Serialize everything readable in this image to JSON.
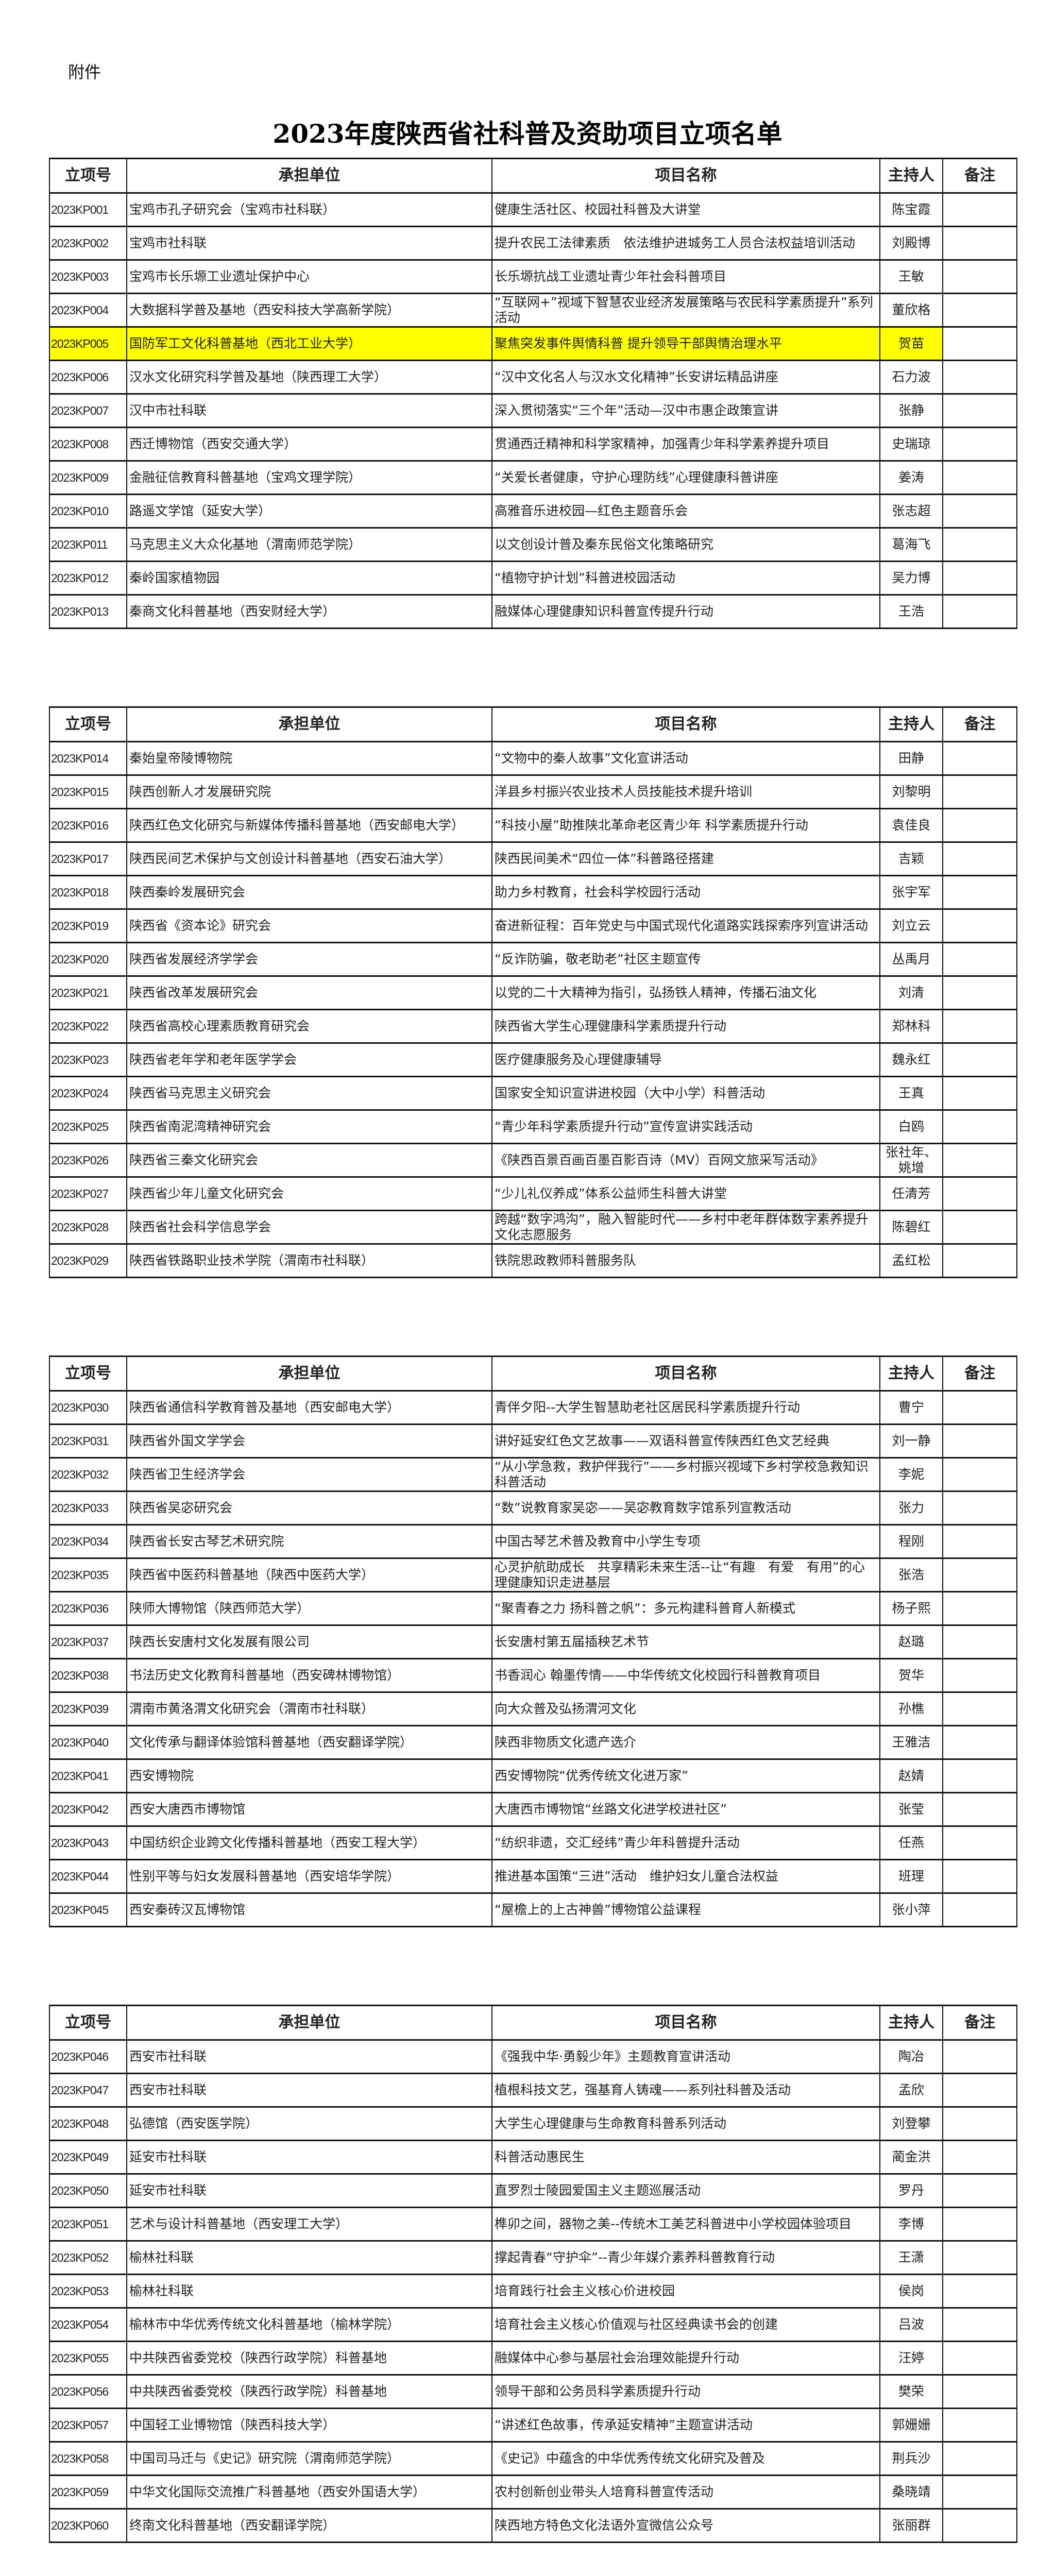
{
  "attachment_label": "附件",
  "title": "2023年度陕西省社科普及资助项目立项名单",
  "highlight_color": "#ffff00",
  "headers": {
    "id": "立项号",
    "unit": "承担单位",
    "project": "项目名称",
    "host": "主持人",
    "note": "备注"
  },
  "tables": [
    {
      "rows": [
        {
          "id": "2023KP001",
          "unit": "宝鸡市孔子研究会（宝鸡市社科联）",
          "project": "健康生活社区、校园社科普及大讲堂",
          "host": "陈宝霞",
          "note": ""
        },
        {
          "id": "2023KP002",
          "unit": "宝鸡市社科联",
          "project": "提升农民工法律素质　依法维护进城务工人员合法权益培训活动",
          "host": "刘殿博",
          "note": ""
        },
        {
          "id": "2023KP003",
          "unit": "宝鸡市长乐塬工业遗址保护中心",
          "project": "长乐塬抗战工业遗址青少年社会科普项目",
          "host": "王敏",
          "note": ""
        },
        {
          "id": "2023KP004",
          "unit": "大数据科学普及基地（西安科技大学高新学院）",
          "project": "“互联网+”视域下智慧农业经济发展策略与农民科学素质提升”系列活动",
          "host": "董欣格",
          "note": ""
        },
        {
          "id": "2023KP005",
          "unit": "国防军工文化科普基地（西北工业大学）",
          "project": "聚焦突发事件舆情科普 提升领导干部舆情治理水平",
          "host": "贺苗",
          "note": "",
          "highlighted": true
        },
        {
          "id": "2023KP006",
          "unit": "汉水文化研究科学普及基地（陕西理工大学）",
          "project": "“汉中文化名人与汉水文化精神”长安讲坛精品讲座",
          "host": "石力波",
          "note": ""
        },
        {
          "id": "2023KP007",
          "unit": "汉中市社科联",
          "project": "深入贯彻落实“三个年”活动—汉中市惠企政策宣讲",
          "host": "张静",
          "note": ""
        },
        {
          "id": "2023KP008",
          "unit": "西迁博物馆（西安交通大学）",
          "project": "贯通西迁精神和科学家精神，加强青少年科学素养提升项目",
          "host": "史瑞琼",
          "note": ""
        },
        {
          "id": "2023KP009",
          "unit": "金融征信教育科普基地（宝鸡文理学院）",
          "project": "“关爱长者健康，守护心理防线”心理健康科普讲座",
          "host": "姜涛",
          "note": ""
        },
        {
          "id": "2023KP010",
          "unit": "路遥文学馆（延安大学）",
          "project": "高雅音乐进校园—红色主题音乐会",
          "host": "张志超",
          "note": ""
        },
        {
          "id": "2023KP011",
          "unit": "马克思主义大众化基地（渭南师范学院）",
          "project": "以文创设计普及秦东民俗文化策略研究",
          "host": "葛海飞",
          "note": ""
        },
        {
          "id": "2023KP012",
          "unit": "秦岭国家植物园",
          "project": "“植物守护计划”科普进校园活动",
          "host": "吴力博",
          "note": ""
        },
        {
          "id": "2023KP013",
          "unit": "秦商文化科普基地（西安财经大学）",
          "project": "融媒体心理健康知识科普宣传提升行动",
          "host": "王浩",
          "note": ""
        }
      ]
    },
    {
      "rows": [
        {
          "id": "2023KP014",
          "unit": "秦始皇帝陵博物院",
          "project": "“文物中的秦人故事”文化宣讲活动",
          "host": "田静",
          "note": ""
        },
        {
          "id": "2023KP015",
          "unit": "陕西创新人才发展研究院",
          "project": "洋县乡村振兴农业技术人员技能技术提升培训",
          "host": "刘黎明",
          "note": ""
        },
        {
          "id": "2023KP016",
          "unit": "陕西红色文化研究与新媒体传播科普基地（西安邮电大学）",
          "project": "“科技小屋”助推陕北革命老区青少年\n科学素质提升行动",
          "host": "袁佳良",
          "note": ""
        },
        {
          "id": "2023KP017",
          "unit": "陕西民间艺术保护与文创设计科普基地（西安石油大学）",
          "project": "陕西民间美术“四位一体”科普路径搭建",
          "host": "吉颖",
          "note": ""
        },
        {
          "id": "2023KP018",
          "unit": "陕西秦岭发展研究会",
          "project": "助力乡村教育，社会科学校园行活动",
          "host": "张宇军",
          "note": ""
        },
        {
          "id": "2023KP019",
          "unit": "陕西省《资本论》研究会",
          "project": "奋进新征程：百年党史与中国式现代化道路实践探索序列宣讲活动",
          "host": "刘立云",
          "note": ""
        },
        {
          "id": "2023KP020",
          "unit": "陕西省发展经济学学会",
          "project": "“反诈防骗，敬老助老”社区主题宣传",
          "host": "丛禹月",
          "note": ""
        },
        {
          "id": "2023KP021",
          "unit": "陕西省改革发展研究会",
          "project": "以党的二十大精神为指引，弘扬铁人精神，传播石油文化",
          "host": "刘清",
          "note": ""
        },
        {
          "id": "2023KP022",
          "unit": "陕西省高校心理素质教育研究会",
          "project": "陕西省大学生心理健康科学素质提升行动",
          "host": "郑林科",
          "note": ""
        },
        {
          "id": "2023KP023",
          "unit": "陕西省老年学和老年医学学会",
          "project": "医疗健康服务及心理健康辅导",
          "host": "魏永红",
          "note": ""
        },
        {
          "id": "2023KP024",
          "unit": "陕西省马克思主义研究会",
          "project": "国家安全知识宣讲进校园（大中小学）科普活动",
          "host": "王真",
          "note": ""
        },
        {
          "id": "2023KP025",
          "unit": "陕西省南泥湾精神研究会",
          "project": "“青少年科学素质提升行动”宣传宣讲实践活动",
          "host": "白鸥",
          "note": ""
        },
        {
          "id": "2023KP026",
          "unit": "陕西省三秦文化研究会",
          "project": "《陕西百景百画百墨百影百诗（MV）百网文旅采写活动》",
          "host": "张社年、姚增",
          "note": ""
        },
        {
          "id": "2023KP027",
          "unit": "陕西省少年儿童文化研究会",
          "project": "“少儿礼仪养成”体系公益师生科普大讲堂",
          "host": "任清芳",
          "note": ""
        },
        {
          "id": "2023KP028",
          "unit": "陕西省社会科学信息学会",
          "project": "跨越“数字鸿沟”，融入智能时代——乡村中老年群体数字素养提升文化志愿服务",
          "host": "陈碧红",
          "note": ""
        },
        {
          "id": "2023KP029",
          "unit": "陕西省铁路职业技术学院（渭南市社科联）",
          "project": "铁院思政教师科普服务队",
          "host": "孟红松",
          "note": ""
        }
      ]
    },
    {
      "rows": [
        {
          "id": "2023KP030",
          "unit": "陕西省通信科学教育普及基地（西安邮电大学）",
          "project": "青伴夕阳--大学生智慧助老社区居民科学素质提升行动",
          "host": "曹宁",
          "note": ""
        },
        {
          "id": "2023KP031",
          "unit": "陕西省外国文学学会",
          "project": "讲好延安红色文艺故事——双语科普宣传陕西红色文艺经典",
          "host": "刘一静",
          "note": ""
        },
        {
          "id": "2023KP032",
          "unit": "陕西省卫生经济学会",
          "project": "“从小学急救，救护伴我行”——乡村振兴视域下乡村学校急救知识科普活动",
          "host": "李妮",
          "note": ""
        },
        {
          "id": "2023KP033",
          "unit": "陕西省吴宓研究会",
          "project": "“数”说教育家吴宓——吴宓教育数字馆系列宣教活动",
          "host": "张力",
          "note": ""
        },
        {
          "id": "2023KP034",
          "unit": "陕西省长安古琴艺术研究院",
          "project": "中国古琴艺术普及教育中小学生专项",
          "host": "程刚",
          "note": ""
        },
        {
          "id": "2023KP035",
          "unit": "陕西省中医药科普基地（陕西中医药大学）",
          "project": "心灵护航助成长　共享精彩未来生活--让“有趣　有爱　有用”的心理健康知识走进基层",
          "host": "张浩",
          "note": ""
        },
        {
          "id": "2023KP036",
          "unit": "陕师大博物馆（陕西师范大学）",
          "project": "“聚青春之力 扬科普之帆”：多元构建科普育人新模式",
          "host": "杨子熙",
          "note": ""
        },
        {
          "id": "2023KP037",
          "unit": "陕西长安唐村文化发展有限公司",
          "project": "长安唐村第五届插秧艺术节",
          "host": "赵璐",
          "note": ""
        },
        {
          "id": "2023KP038",
          "unit": "书法历史文化教育科普基地（西安碑林博物馆）",
          "project": "书香润心 翰墨传情——中华传统文化校园行科普教育项目",
          "host": "贺华",
          "note": ""
        },
        {
          "id": "2023KP039",
          "unit": "渭南市黄洛渭文化研究会（渭南市社科联）",
          "project": "向大众普及弘扬渭河文化",
          "host": "孙樵",
          "note": ""
        },
        {
          "id": "2023KP040",
          "unit": "文化传承与翻译体验馆科普基地（西安翻译学院）",
          "project": "陕西非物质文化遗产选介",
          "host": "王雅洁",
          "note": ""
        },
        {
          "id": "2023KP041",
          "unit": "西安博物院",
          "project": "西安博物院“优秀传统文化进万家”",
          "host": "赵婧",
          "note": ""
        },
        {
          "id": "2023KP042",
          "unit": "西安大唐西市博物馆",
          "project": "大唐西市博物馆“丝路文化进学校进社区”",
          "host": "张莹",
          "note": ""
        },
        {
          "id": "2023KP043",
          "unit": "中国纺织企业跨文化传播科普基地（西安工程大学）",
          "project": "“纺织非遗，交汇经纬”青少年科普提升活动",
          "host": "任燕",
          "note": ""
        },
        {
          "id": "2023KP044",
          "unit": "性别平等与妇女发展科普基地（西安培华学院）",
          "project": "推进基本国策“三进”活动　维护妇女儿童合法权益",
          "host": "班理",
          "note": ""
        },
        {
          "id": "2023KP045",
          "unit": "西安秦砖汉瓦博物馆",
          "project": "“屋檐上的上古神兽”博物馆公益课程",
          "host": "张小萍",
          "note": ""
        }
      ]
    },
    {
      "rows": [
        {
          "id": "2023KP046",
          "unit": "西安市社科联",
          "project": "《强我中华·勇毅少年》主题教育宣讲活动",
          "host": "陶冶",
          "note": ""
        },
        {
          "id": "2023KP047",
          "unit": "西安市社科联",
          "project": "植根科技文艺，强基育人铸魂——系列社科普及活动",
          "host": "孟欣",
          "note": ""
        },
        {
          "id": "2023KP048",
          "unit": "弘德馆（西安医学院）",
          "project": "大学生心理健康与生命教育科普系列活动",
          "host": "刘登攀",
          "note": ""
        },
        {
          "id": "2023KP049",
          "unit": "延安市社科联",
          "project": "科普活动惠民生",
          "host": "蔺金洪",
          "note": ""
        },
        {
          "id": "2023KP050",
          "unit": "延安市社科联",
          "project": "直罗烈士陵园爱国主义主题巡展活动",
          "host": "罗丹",
          "note": ""
        },
        {
          "id": "2023KP051",
          "unit": "艺术与设计科普基地（西安理工大学）",
          "project": "榫卯之间，器物之美--传统木工美艺科普进中小学校园体验项目",
          "host": "李博",
          "note": ""
        },
        {
          "id": "2023KP052",
          "unit": "榆林社科联",
          "project": "撑起青春“守护伞”--青少年媒介素养科普教育行动",
          "host": "王潇",
          "note": ""
        },
        {
          "id": "2023KP053",
          "unit": "榆林社科联",
          "project": "培育践行社会主义核心价进校园",
          "host": "侯岗",
          "note": ""
        },
        {
          "id": "2023KP054",
          "unit": "榆林市中华优秀传统文化科普基地（榆林学院）",
          "project": "培育社会主义核心价值观与社区经典读书会的创建",
          "host": "吕波",
          "note": ""
        },
        {
          "id": "2023KP055",
          "unit": "中共陕西省委党校（陕西行政学院）科普基地",
          "project": "融媒体中心参与基层社会治理效能提升行动",
          "host": "汪婷",
          "note": ""
        },
        {
          "id": "2023KP056",
          "unit": "中共陕西省委党校（陕西行政学院）科普基地",
          "project": "领导干部和公务员科学素质提升行动",
          "host": "樊荣",
          "note": ""
        },
        {
          "id": "2023KP057",
          "unit": "中国轻工业博物馆（陕西科技大学）",
          "project": "“讲述红色故事，传承延安精神”主题宣讲活动",
          "host": "郭姗姗",
          "note": ""
        },
        {
          "id": "2023KP058",
          "unit": "中国司马迁与《史记》研究院（渭南师范学院）",
          "project": "《史记》中蕴含的中华优秀传统文化研究及普及",
          "host": "荆兵沙",
          "note": ""
        },
        {
          "id": "2023KP059",
          "unit": "中华文化国际交流推广科普基地（西安外国语大学）",
          "project": "农村创新创业带头人培育科普宣传活动",
          "host": "桑晓靖",
          "note": ""
        },
        {
          "id": "2023KP060",
          "unit": "终南文化科普基地（西安翻译学院）",
          "project": "陕西地方特色文化法语外宣微信公众号",
          "host": "张丽群",
          "note": ""
        }
      ]
    }
  ]
}
